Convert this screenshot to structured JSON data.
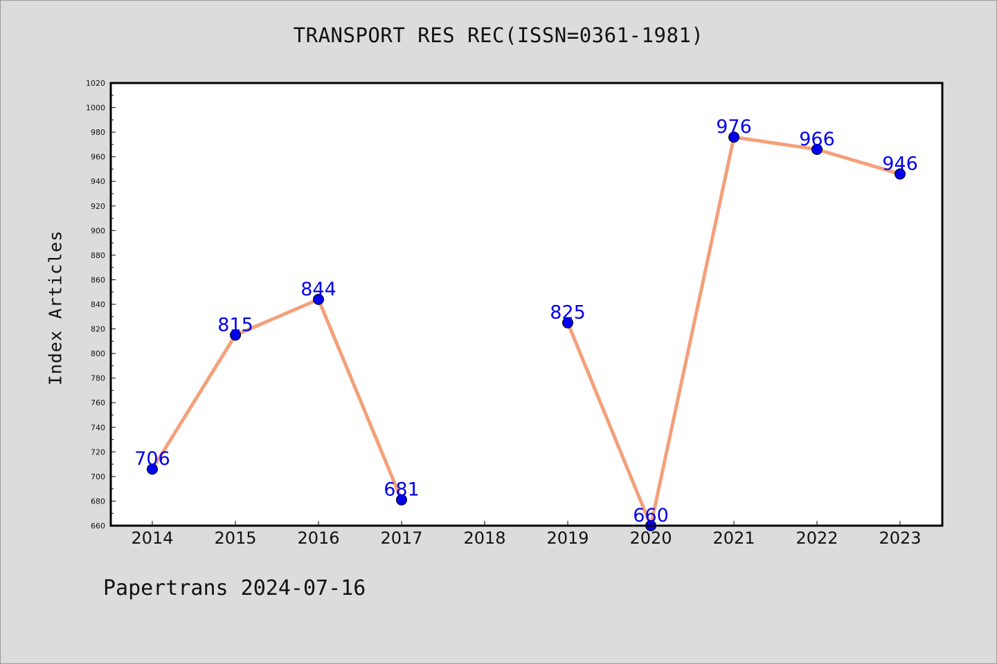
{
  "chart_data": {
    "type": "line",
    "title": "TRANSPORT RES REC(ISSN=0361-1981)",
    "ylabel": "Index Articles",
    "xlabel": "",
    "footer": "Papertrans 2024-07-16",
    "categories": [
      "2014",
      "2015",
      "2016",
      "2017",
      "2018",
      "2019",
      "2020",
      "2021",
      "2022",
      "2023"
    ],
    "series": [
      {
        "values": [
          706,
          815,
          844,
          681,
          null,
          825,
          660,
          976,
          966,
          946
        ],
        "data_labels": [
          "706",
          "815",
          "844",
          "681",
          "",
          "825",
          "660",
          "976",
          "966",
          "946"
        ]
      }
    ],
    "ylim": [
      660,
      1020
    ],
    "yticks": [
      660,
      680,
      700,
      720,
      740,
      760,
      780,
      800,
      820,
      840,
      860,
      880,
      900,
      920,
      940,
      960,
      980,
      1000,
      1020
    ],
    "grid": false,
    "line_color": "#f4a07a",
    "marker_color": "#0000ee",
    "label_color": "#0000ee"
  }
}
